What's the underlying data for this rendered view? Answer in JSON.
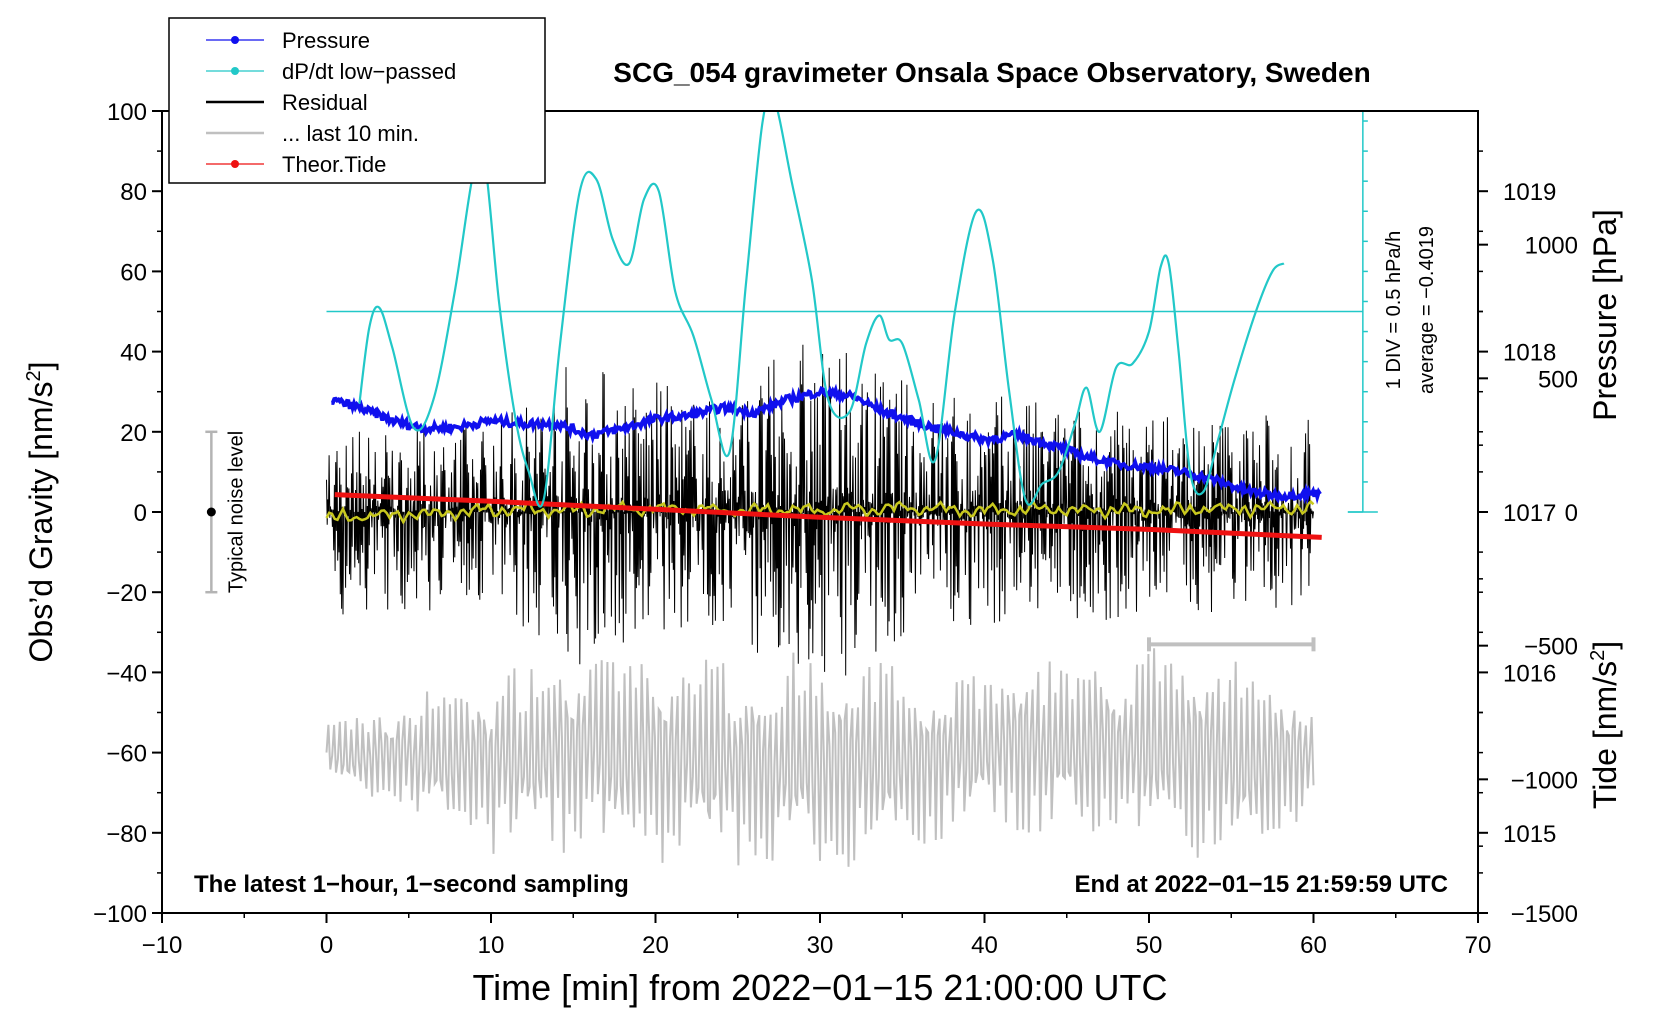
{
  "chart_data": {
    "type": "line",
    "title": "SCG_054 gravimeter Onsala Space Observatory, Sweden",
    "xlabel": "Time [min] from 2022−01−15 21:00:00 UTC",
    "ylabel_left": "Obs’d Gravity [nm/s",
    "ylabel_left_sup": "2",
    "ylabel_left_end": "]",
    "ylabel_right_top": "Pressure [hPa]",
    "ylabel_right_bottom": "Tide [nm/s",
    "ylabel_right_bottom_sup": "2",
    "ylabel_right_bottom_end": "]",
    "xlim": [
      -10,
      70
    ],
    "ylim": [
      -100,
      100
    ],
    "pressure_lim": [
      1014.5,
      1019.5
    ],
    "tide_lim": [
      -1500,
      1500
    ],
    "x_ticks": [
      -10,
      0,
      10,
      20,
      30,
      40,
      50,
      60,
      70
    ],
    "x_tick_labels": [
      "−10",
      "0",
      "10",
      "20",
      "30",
      "40",
      "50",
      "60",
      "70"
    ],
    "y_ticks": [
      -100,
      -80,
      -60,
      -40,
      -20,
      0,
      20,
      40,
      60,
      80,
      100
    ],
    "y_tick_labels": [
      "−100",
      "−80",
      "−60",
      "−40",
      "−20",
      "0",
      "20",
      "40",
      "60",
      "80",
      "100"
    ],
    "pressure_ticks": [
      1015,
      1016,
      1017,
      1018,
      1019
    ],
    "pressure_tick_labels": [
      "1015",
      "1016",
      "1017",
      "1018",
      "1019"
    ],
    "tide_ticks": [
      -1500,
      -1000,
      -500,
      0,
      500,
      1000
    ],
    "tide_tick_labels": [
      "−1500",
      "−1000",
      "−500",
      "0",
      "500",
      "1000"
    ],
    "legend": {
      "position": "top-left",
      "entries": [
        {
          "label": "Pressure",
          "color": "#1010ee",
          "marker": true
        },
        {
          "label": "dP/dt low−passed",
          "color": "#22c8c8",
          "marker": true
        },
        {
          "label": "Residual",
          "color": "#000000",
          "marker": false
        },
        {
          "label": "... last 10 min.",
          "color": "#c0c0c0",
          "marker": false
        },
        {
          "label": "Theor.Tide",
          "color": "#ee1111",
          "marker": true
        }
      ]
    },
    "annotations": {
      "bottom_left": "The latest 1−hour, 1−second sampling",
      "bottom_right": "End at 2022−01−15 21:59:59 UTC",
      "noise_label": "Typical noise level",
      "div_label": "1 DIV = 0.5 hPa/h",
      "average_label": "average = −0.4019"
    },
    "noise_bar": {
      "x": -7,
      "y_low": -20,
      "y_high": 20,
      "center": 0
    },
    "last10_bracket": {
      "x_start": 50,
      "x_end": 60,
      "y": -33
    },
    "dpdt_scale": {
      "zero_y": 50,
      "div_step_y": 7.5,
      "axis_x": 63,
      "y_low": 0,
      "y_high": 100
    },
    "series": [
      {
        "name": "Pressure",
        "axis": "pressure_hpa",
        "color": "#1010ee",
        "x": [
          0.3,
          2,
          4,
          6,
          8,
          10,
          12,
          14,
          16,
          18,
          20,
          22,
          24,
          26,
          28,
          30,
          32,
          34,
          36,
          38,
          40,
          42,
          44,
          46,
          48,
          50,
          52,
          54,
          56,
          58,
          60.4
        ],
        "values": [
          1017.7,
          1017.65,
          1017.57,
          1017.52,
          1017.53,
          1017.57,
          1017.55,
          1017.55,
          1017.48,
          1017.52,
          1017.58,
          1017.6,
          1017.65,
          1017.62,
          1017.7,
          1017.75,
          1017.72,
          1017.62,
          1017.55,
          1017.5,
          1017.45,
          1017.48,
          1017.42,
          1017.35,
          1017.3,
          1017.28,
          1017.25,
          1017.2,
          1017.13,
          1017.1,
          1017.12
        ]
      },
      {
        "name": "dP/dt low-passed",
        "axis": "gravity_scaled",
        "color": "#22c8c8",
        "x": [
          2,
          2.6,
          3.2,
          4,
          5.3,
          6.5,
          7.8,
          8.9,
          9.6,
          10.5,
          11.5,
          12.3,
          13.2,
          14.2,
          15.4,
          16.4,
          17.4,
          18.4,
          19.3,
          20.2,
          21.2,
          22.3,
          23.4,
          24.5,
          25.5,
          26.5,
          27.2,
          28.3,
          29.5,
          30.5,
          31.8,
          32.8,
          33.6,
          34.2,
          35,
          36,
          37,
          38.2,
          39.5,
          40.5,
          41.5,
          42.5,
          43.5,
          44.5,
          45.5,
          46.2,
          47,
          48,
          49,
          50,
          50.7,
          51.2,
          51.8,
          52.5,
          53.3,
          54.2,
          55.2,
          56.5,
          57.5,
          58.2
        ],
        "values": [
          27,
          46,
          51,
          41,
          21,
          28,
          55,
          84,
          88,
          52,
          23,
          10,
          3,
          42,
          80,
          83,
          68,
          62,
          78,
          80,
          55,
          44,
          28,
          15,
          57,
          97,
          103,
          82,
          58,
          28,
          25,
          42,
          49,
          43,
          42,
          28,
          13,
          50,
          75,
          63,
          30,
          3,
          7,
          10,
          22,
          31,
          20,
          36,
          37,
          45,
          61,
          62,
          40,
          10,
          5,
          18,
          33,
          50,
          60,
          62
        ]
      },
      {
        "name": "Residual",
        "axis": "gravity",
        "color": "#000000",
        "x_range": [
          0,
          60
        ],
        "envelope": [
          {
            "x": 0,
            "high": 20,
            "low": -26
          },
          {
            "x": 10,
            "high": 24,
            "low": -24
          },
          {
            "x": 15,
            "high": 40,
            "low": -40
          },
          {
            "x": 24,
            "high": 28,
            "low": -28
          },
          {
            "x": 29,
            "high": 45,
            "low": -47
          },
          {
            "x": 36,
            "high": 32,
            "low": -30
          },
          {
            "x": 48,
            "high": 26,
            "low": -27
          },
          {
            "x": 60,
            "high": 25,
            "low": -24
          }
        ]
      },
      {
        "name": "Residual smoothed",
        "axis": "gravity",
        "color": "#c8c81e",
        "x": [
          0,
          5,
          10,
          15,
          20,
          25,
          30,
          35,
          40,
          45,
          50,
          55,
          60
        ],
        "values": [
          -1.5,
          -0.5,
          0.5,
          0.5,
          1,
          0.5,
          0.5,
          1,
          0.5,
          0.5,
          0.5,
          0.8,
          1
        ]
      },
      {
        "name": "... last 10 min.",
        "axis": "gravity",
        "color": "#c0c0c0",
        "x_range": [
          0,
          60
        ],
        "center": -60,
        "envelope": [
          {
            "x": 0,
            "high": -52,
            "low": -68
          },
          {
            "x": 10,
            "high": -38,
            "low": -86
          },
          {
            "x": 15,
            "high": -33,
            "low": -86
          },
          {
            "x": 29,
            "high": -35,
            "low": -92
          },
          {
            "x": 40,
            "high": -38,
            "low": -80
          },
          {
            "x": 45,
            "high": -33,
            "low": -84
          },
          {
            "x": 57,
            "high": -35,
            "low": -88
          },
          {
            "x": 60,
            "high": -44,
            "low": -78
          }
        ]
      },
      {
        "name": "Theor.Tide",
        "axis": "tide",
        "color": "#ee1111",
        "x": [
          0.5,
          10,
          20,
          30,
          40,
          50,
          60.5
        ],
        "values": [
          65,
          40,
          10,
          -20,
          -45,
          -65,
          -95
        ]
      }
    ]
  }
}
